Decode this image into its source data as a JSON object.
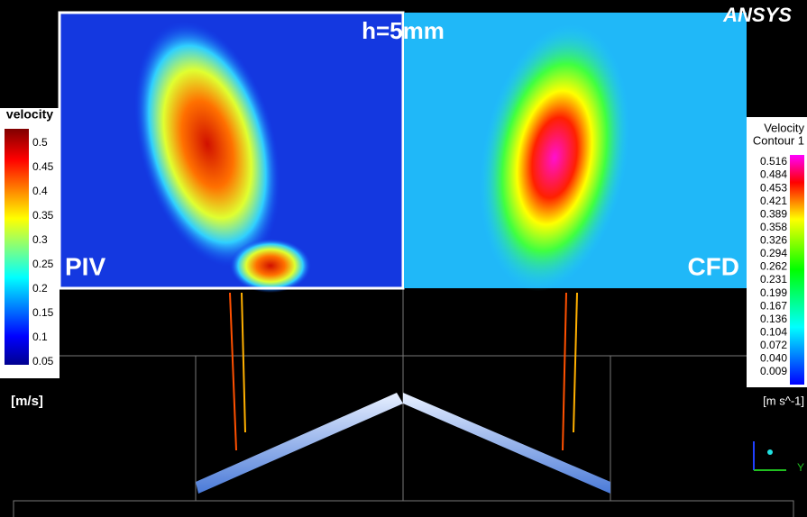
{
  "header": {
    "title": "h=5mm",
    "logo": "ANSYS"
  },
  "panels": {
    "left": "PIV",
    "right": "CFD"
  },
  "legend_left": {
    "title": "velocity",
    "ticks": [
      "0.5",
      "0.45",
      "0.4",
      "0.35",
      "0.3",
      "0.25",
      "0.2",
      "0.15",
      "0.1",
      "0.05"
    ],
    "unit": "[m/s]"
  },
  "legend_right": {
    "title": [
      "Velocity",
      "Contour 1"
    ],
    "ticks": [
      "0.516",
      "0.484",
      "0.453",
      "0.421",
      "0.389",
      "0.358",
      "0.326",
      "0.294",
      "0.262",
      "0.231",
      "0.199",
      "0.167",
      "0.136",
      "0.104",
      "0.072",
      "0.040",
      "0.009"
    ],
    "unit": "[m s^-1]"
  },
  "axes": {
    "y": "Y"
  }
}
